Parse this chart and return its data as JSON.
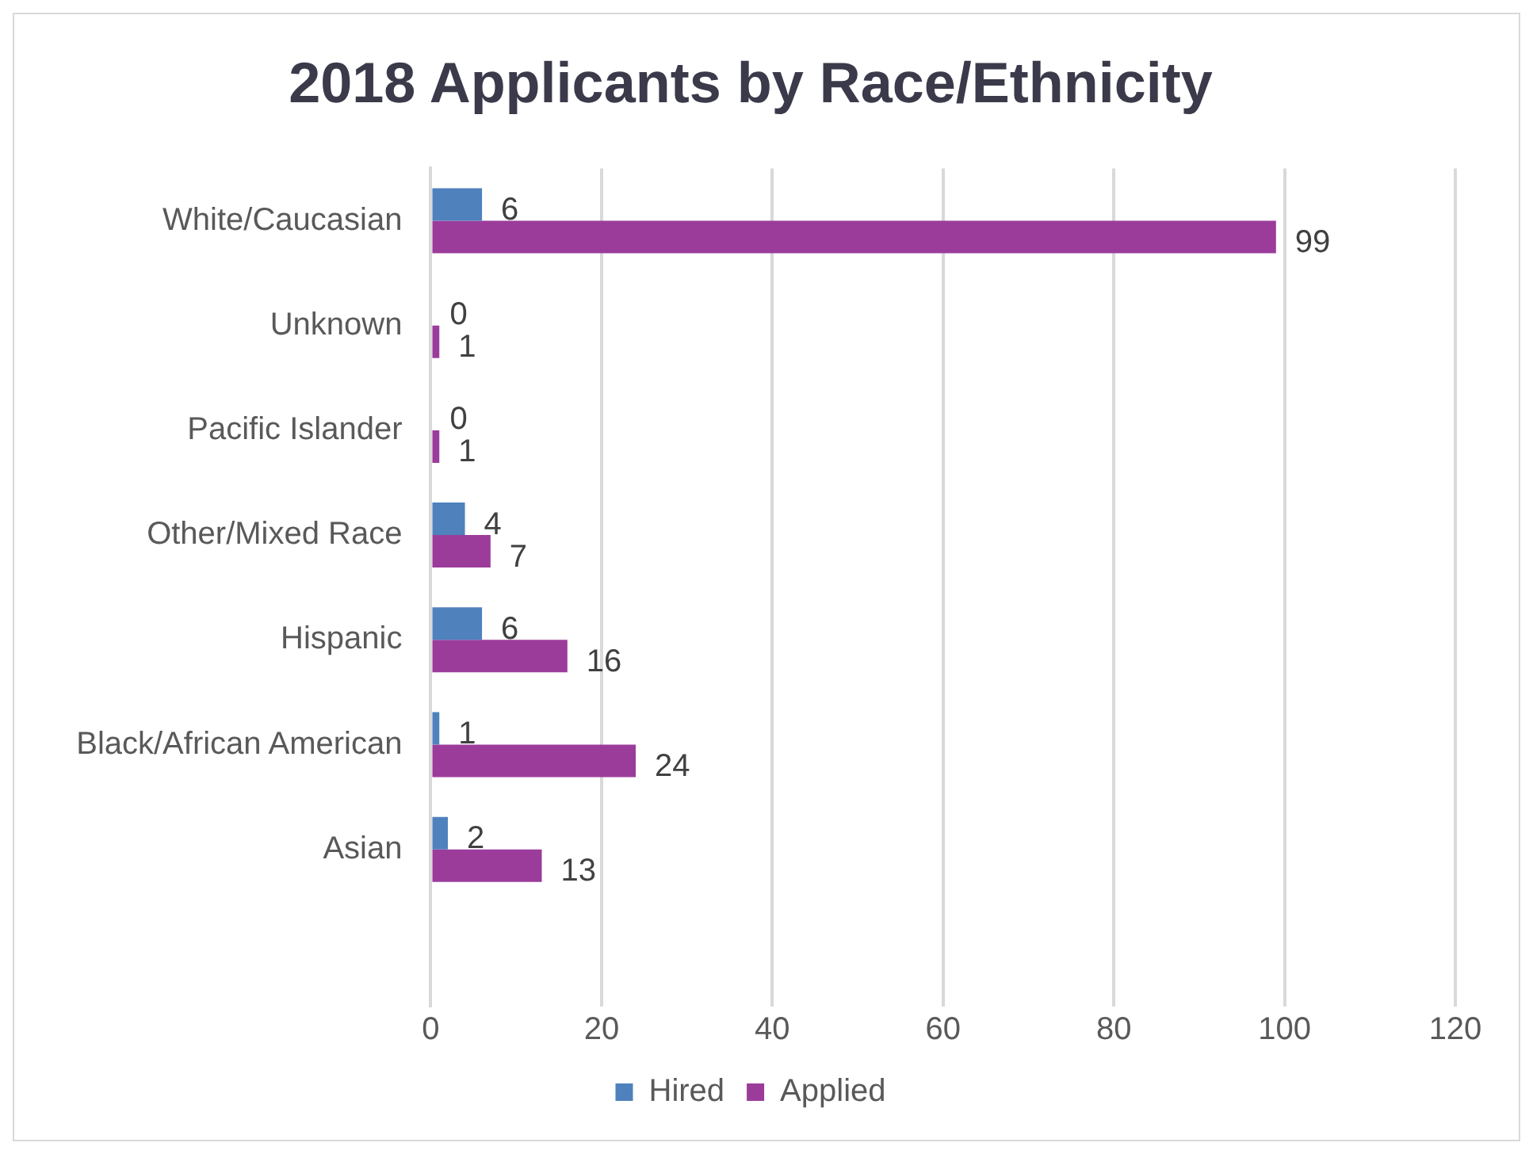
{
  "chart_data": {
    "type": "bar",
    "orientation": "horizontal",
    "title": "2018 Applicants by Race/Ethnicity",
    "categories": [
      "White/Caucasian",
      "Unknown",
      "Pacific Islander",
      "Other/Mixed Race",
      "Hispanic",
      "Black/African American",
      "Asian",
      null
    ],
    "series": [
      {
        "name": "Hired",
        "color": "#4f81bd",
        "values": [
          6,
          0,
          0,
          4,
          6,
          1,
          2,
          null
        ]
      },
      {
        "name": "Applied",
        "color": "#9b3c9b",
        "values": [
          99,
          1,
          1,
          7,
          16,
          24,
          13,
          null
        ]
      }
    ],
    "xlim": [
      0,
      120
    ],
    "xticks": [
      0,
      20,
      40,
      60,
      80,
      100,
      120
    ],
    "grid": "x",
    "legend": "bottom",
    "data_labels": true
  }
}
